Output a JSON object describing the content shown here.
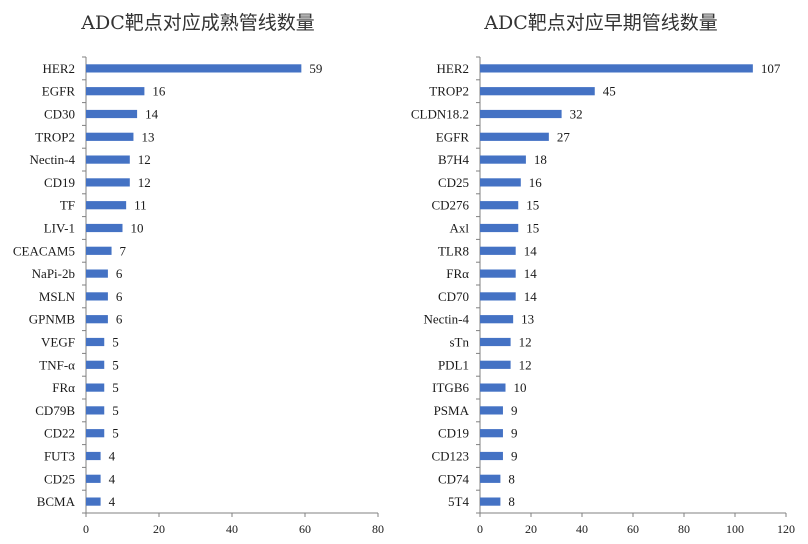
{
  "chart_data": [
    {
      "type": "bar",
      "orientation": "horizontal",
      "title": "ADC靶点对应成熟管线数量",
      "categories": [
        "HER2",
        "EGFR",
        "CD30",
        "TROP2",
        "Nectin-4",
        "CD19",
        "TF",
        "LIV-1",
        "CEACAM5",
        "NaPi-2b",
        "MSLN",
        "GPNMB",
        "VEGF",
        "TNF-α",
        "FRα",
        "CD79B",
        "CD22",
        "FUT3",
        "CD25",
        "BCMA"
      ],
      "values": [
        59,
        16,
        14,
        13,
        12,
        12,
        11,
        10,
        7,
        6,
        6,
        6,
        5,
        5,
        5,
        5,
        5,
        4,
        4,
        4
      ],
      "xlim": [
        0,
        80
      ],
      "xticks": [
        0,
        20,
        40,
        60,
        80
      ],
      "bar_color": "#4472c4",
      "grid": false
    },
    {
      "type": "bar",
      "orientation": "horizontal",
      "title": "ADC靶点对应早期管线数量",
      "categories": [
        "HER2",
        "TROP2",
        "CLDN18.2",
        "EGFR",
        "B7H4",
        "CD25",
        "CD276",
        "Axl",
        "TLR8",
        "FRα",
        "CD70",
        "Nectin-4",
        "sTn",
        "PDL1",
        "ITGB6",
        "PSMA",
        "CD19",
        "CD123",
        "CD74",
        "5T4"
      ],
      "values": [
        107,
        45,
        32,
        27,
        18,
        16,
        15,
        15,
        14,
        14,
        14,
        13,
        12,
        12,
        10,
        9,
        9,
        9,
        8,
        8
      ],
      "xlim": [
        0,
        120
      ],
      "xticks": [
        0,
        20,
        40,
        60,
        80,
        100,
        120
      ],
      "bar_color": "#4472c4",
      "grid": false
    }
  ]
}
